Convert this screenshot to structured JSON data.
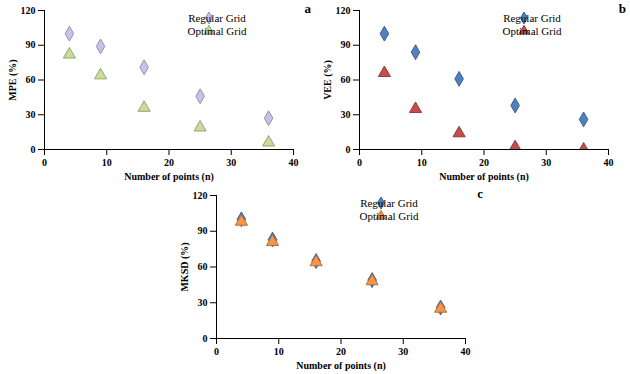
{
  "chart_data": [
    {
      "type": "scatter",
      "title": "a",
      "x_label": "Number of points (n)",
      "y_label": "MPE (%)",
      "xlim": [
        0,
        40
      ],
      "xticks": [
        0,
        10,
        20,
        30,
        40
      ],
      "ylim": [
        0,
        120
      ],
      "yticks": [
        0,
        30,
        60,
        90,
        120
      ],
      "legend": "top-right",
      "x": [
        4,
        9,
        16,
        25,
        36
      ],
      "series": [
        {
          "name": "Regular Grid",
          "color": "#c9c1ea",
          "marker": "diamond",
          "values": [
            100,
            89,
            71,
            46,
            27
          ]
        },
        {
          "name": "Optimal Grid",
          "color": "#c8dc9c",
          "marker": "triangle",
          "values": [
            82,
            64,
            36,
            19,
            6
          ]
        }
      ]
    },
    {
      "type": "scatter",
      "title": "b",
      "x_label": "Number of points (n)",
      "y_label": "VEE (%)",
      "xlim": [
        0,
        40
      ],
      "xticks": [
        0,
        10,
        20,
        30,
        40
      ],
      "ylim": [
        0,
        120
      ],
      "yticks": [
        0,
        30,
        60,
        90,
        120
      ],
      "legend": "top-right",
      "x": [
        4,
        9,
        16,
        25,
        36
      ],
      "series": [
        {
          "name": "Regular Grid",
          "color": "#4f81bd",
          "marker": "diamond",
          "values": [
            100,
            84,
            61,
            38,
            26
          ]
        },
        {
          "name": "Optimal Grid",
          "color": "#c0504d",
          "marker": "triangle",
          "values": [
            66,
            35,
            14,
            2,
            0
          ]
        }
      ]
    },
    {
      "type": "scatter",
      "title": "c",
      "x_label": "Number of points (n)",
      "y_label": "MKSD (%)",
      "xlim": [
        0,
        40
      ],
      "xticks": [
        0,
        10,
        20,
        30,
        40
      ],
      "ylim": [
        0,
        120
      ],
      "yticks": [
        0,
        30,
        60,
        90,
        120
      ],
      "legend": "top-right",
      "x": [
        4,
        9,
        16,
        25,
        36
      ],
      "series": [
        {
          "name": "Regular Grid",
          "color": "#4f81bd",
          "marker": "diamond",
          "values": [
            100,
            83,
            65,
            49,
            26
          ]
        },
        {
          "name": "Optimal Grid",
          "color": "#f79646",
          "marker": "triangle",
          "values": [
            98,
            81,
            64,
            48,
            25
          ]
        }
      ]
    }
  ]
}
